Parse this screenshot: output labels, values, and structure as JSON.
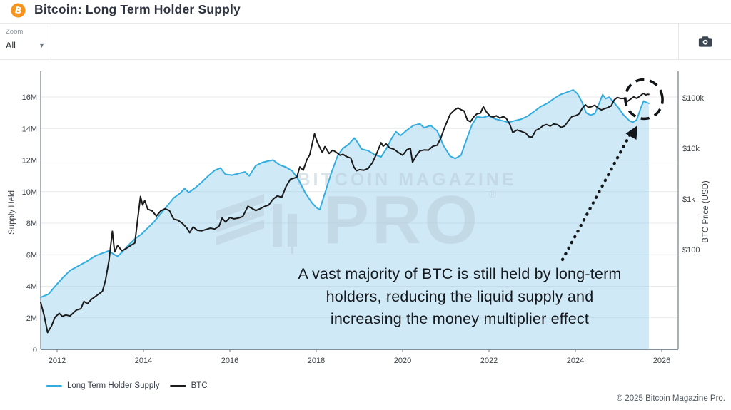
{
  "header": {
    "title": "Bitcoin: Long Term Holder Supply"
  },
  "toolbar": {
    "zoom_label": "Zoom",
    "zoom_value": "All"
  },
  "watermark": {
    "line1": "BITCOIN MAGAZINE",
    "line2": "PRO",
    "registered": "®"
  },
  "footer": {
    "copyright": "© 2025 Bitcoin Magazine Pro."
  },
  "colors": {
    "brand_orange": "#f7931a",
    "supply_line": "#33ade0",
    "supply_fill": "#89c7eb",
    "btc_line": "#1b1b1b",
    "grid": "#e8eaec",
    "axis": "#737c85",
    "watermark": "#b9cdd9"
  },
  "chart_data": {
    "type": "line",
    "title": "Bitcoin: Long Term Holder Supply",
    "x_range": [
      2011.62,
      2026.38
    ],
    "x_axis": {
      "tick_values": [
        2012,
        2014,
        2016,
        2018,
        2020,
        2022,
        2024,
        2026
      ],
      "tick_labels": [
        "2012",
        "2014",
        "2016",
        "2018",
        "2020",
        "2022",
        "2024",
        "2026"
      ]
    },
    "left_axis": {
      "title": "Supply Held",
      "ylim": [
        0,
        17.63
      ],
      "tick_values": [
        0,
        2,
        4,
        6,
        8,
        10,
        12,
        14,
        16
      ],
      "tick_labels": [
        "0",
        "2M",
        "4M",
        "6M",
        "8M",
        "10M",
        "12M",
        "14M",
        "16M"
      ]
    },
    "right_axis": {
      "title": "BTC Price (USD)",
      "scale": "log",
      "ylim": [
        1.07,
        332000
      ],
      "tick_values": [
        100,
        1000,
        10000,
        100000
      ],
      "tick_labels": [
        "$100",
        "$1k",
        "$10k",
        "$100k"
      ]
    },
    "grid": "horizontal-only",
    "legend_position": "bottom-left",
    "annotation": {
      "lines": [
        "A vast majority of BTC is still held by long-term",
        "holders, reducing the liquid supply and",
        "increasing the money multiplier effect"
      ],
      "arrow_to": [
        2025.55,
        15.8
      ],
      "circle_at": [
        2025.6,
        15.7
      ]
    },
    "series": [
      {
        "name": "Long Term Holder Supply",
        "axis": "left",
        "unit": "M BTC",
        "color": "#33ade0",
        "fill": true,
        "fill_color": "#89c7eb",
        "fill_opacity": 0.4,
        "points": [
          [
            2011.62,
            3.3
          ],
          [
            2011.8,
            3.5
          ],
          [
            2012.0,
            4.15
          ],
          [
            2012.15,
            4.6
          ],
          [
            2012.3,
            5.0
          ],
          [
            2012.5,
            5.3
          ],
          [
            2012.7,
            5.6
          ],
          [
            2012.9,
            5.95
          ],
          [
            2013.05,
            6.1
          ],
          [
            2013.2,
            6.25
          ],
          [
            2013.3,
            6.05
          ],
          [
            2013.4,
            5.9
          ],
          [
            2013.5,
            6.15
          ],
          [
            2013.65,
            6.6
          ],
          [
            2013.8,
            7.0
          ],
          [
            2013.95,
            7.3
          ],
          [
            2014.1,
            7.7
          ],
          [
            2014.25,
            8.1
          ],
          [
            2014.4,
            8.6
          ],
          [
            2014.55,
            9.1
          ],
          [
            2014.7,
            9.6
          ],
          [
            2014.85,
            9.9
          ],
          [
            2014.95,
            10.2
          ],
          [
            2015.05,
            9.95
          ],
          [
            2015.2,
            10.25
          ],
          [
            2015.35,
            10.6
          ],
          [
            2015.5,
            11.0
          ],
          [
            2015.65,
            11.35
          ],
          [
            2015.78,
            11.5
          ],
          [
            2015.9,
            11.1
          ],
          [
            2016.05,
            11.05
          ],
          [
            2016.2,
            11.15
          ],
          [
            2016.35,
            11.25
          ],
          [
            2016.45,
            11.0
          ],
          [
            2016.6,
            11.65
          ],
          [
            2016.75,
            11.85
          ],
          [
            2016.9,
            11.95
          ],
          [
            2017.0,
            12.0
          ],
          [
            2017.15,
            11.7
          ],
          [
            2017.3,
            11.55
          ],
          [
            2017.45,
            11.3
          ],
          [
            2017.6,
            10.7
          ],
          [
            2017.75,
            9.9
          ],
          [
            2017.9,
            9.3
          ],
          [
            2018.0,
            9.0
          ],
          [
            2018.08,
            8.85
          ],
          [
            2018.2,
            9.9
          ],
          [
            2018.35,
            11.2
          ],
          [
            2018.5,
            12.3
          ],
          [
            2018.62,
            12.75
          ],
          [
            2018.75,
            13.0
          ],
          [
            2018.88,
            13.4
          ],
          [
            2018.95,
            13.15
          ],
          [
            2019.05,
            12.7
          ],
          [
            2019.2,
            12.6
          ],
          [
            2019.35,
            12.35
          ],
          [
            2019.5,
            12.2
          ],
          [
            2019.62,
            12.7
          ],
          [
            2019.75,
            13.4
          ],
          [
            2019.85,
            13.8
          ],
          [
            2019.95,
            13.55
          ],
          [
            2020.1,
            13.9
          ],
          [
            2020.25,
            14.2
          ],
          [
            2020.4,
            14.3
          ],
          [
            2020.5,
            14.05
          ],
          [
            2020.65,
            14.2
          ],
          [
            2020.8,
            13.85
          ],
          [
            2020.95,
            12.9
          ],
          [
            2021.1,
            12.25
          ],
          [
            2021.22,
            12.1
          ],
          [
            2021.35,
            12.3
          ],
          [
            2021.48,
            13.3
          ],
          [
            2021.6,
            14.2
          ],
          [
            2021.72,
            14.75
          ],
          [
            2021.85,
            14.7
          ],
          [
            2022.0,
            14.8
          ],
          [
            2022.15,
            14.6
          ],
          [
            2022.3,
            14.5
          ],
          [
            2022.45,
            14.4
          ],
          [
            2022.6,
            14.5
          ],
          [
            2022.75,
            14.6
          ],
          [
            2022.9,
            14.8
          ],
          [
            2023.05,
            15.1
          ],
          [
            2023.2,
            15.4
          ],
          [
            2023.35,
            15.6
          ],
          [
            2023.5,
            15.9
          ],
          [
            2023.65,
            16.15
          ],
          [
            2023.8,
            16.3
          ],
          [
            2023.95,
            16.45
          ],
          [
            2024.05,
            16.2
          ],
          [
            2024.15,
            15.7
          ],
          [
            2024.25,
            15.0
          ],
          [
            2024.35,
            14.85
          ],
          [
            2024.45,
            14.95
          ],
          [
            2024.55,
            15.6
          ],
          [
            2024.63,
            16.15
          ],
          [
            2024.7,
            15.9
          ],
          [
            2024.78,
            16.0
          ],
          [
            2024.88,
            15.7
          ],
          [
            2025.0,
            15.3
          ],
          [
            2025.12,
            14.85
          ],
          [
            2025.25,
            14.5
          ],
          [
            2025.33,
            14.4
          ],
          [
            2025.42,
            14.55
          ],
          [
            2025.5,
            15.2
          ],
          [
            2025.58,
            15.75
          ],
          [
            2025.65,
            15.65
          ],
          [
            2025.7,
            15.6
          ]
        ]
      },
      {
        "name": "BTC",
        "axis": "right",
        "unit": "USD",
        "color": "#1b1b1b",
        "fill": false,
        "points": [
          [
            2011.62,
            9
          ],
          [
            2011.7,
            5
          ],
          [
            2011.78,
            2.3
          ],
          [
            2011.87,
            3.1
          ],
          [
            2011.95,
            4.6
          ],
          [
            2012.05,
            5.5
          ],
          [
            2012.12,
            4.8
          ],
          [
            2012.2,
            5.1
          ],
          [
            2012.3,
            4.9
          ],
          [
            2012.45,
            6.4
          ],
          [
            2012.55,
            6.8
          ],
          [
            2012.62,
            9.5
          ],
          [
            2012.7,
            8.5
          ],
          [
            2012.8,
            10.5
          ],
          [
            2012.95,
            13
          ],
          [
            2013.05,
            15
          ],
          [
            2013.12,
            25
          ],
          [
            2013.2,
            60
          ],
          [
            2013.28,
            230
          ],
          [
            2013.33,
            90
          ],
          [
            2013.4,
            120
          ],
          [
            2013.5,
            95
          ],
          [
            2013.6,
            105
          ],
          [
            2013.7,
            120
          ],
          [
            2013.8,
            135
          ],
          [
            2013.87,
            420
          ],
          [
            2013.93,
            1120
          ],
          [
            2013.98,
            760
          ],
          [
            2014.03,
            930
          ],
          [
            2014.1,
            630
          ],
          [
            2014.2,
            580
          ],
          [
            2014.3,
            460
          ],
          [
            2014.4,
            580
          ],
          [
            2014.5,
            640
          ],
          [
            2014.6,
            590
          ],
          [
            2014.7,
            400
          ],
          [
            2014.8,
            380
          ],
          [
            2014.9,
            330
          ],
          [
            2015.0,
            270
          ],
          [
            2015.07,
            215
          ],
          [
            2015.15,
            280
          ],
          [
            2015.25,
            240
          ],
          [
            2015.35,
            235
          ],
          [
            2015.45,
            250
          ],
          [
            2015.55,
            265
          ],
          [
            2015.65,
            255
          ],
          [
            2015.75,
            290
          ],
          [
            2015.82,
            420
          ],
          [
            2015.9,
            350
          ],
          [
            2016.0,
            430
          ],
          [
            2016.1,
            405
          ],
          [
            2016.2,
            420
          ],
          [
            2016.3,
            450
          ],
          [
            2016.42,
            720
          ],
          [
            2016.5,
            660
          ],
          [
            2016.6,
            590
          ],
          [
            2016.7,
            640
          ],
          [
            2016.8,
            710
          ],
          [
            2016.9,
            760
          ],
          [
            2017.0,
            990
          ],
          [
            2017.1,
            1150
          ],
          [
            2017.2,
            1080
          ],
          [
            2017.3,
            1750
          ],
          [
            2017.4,
            2450
          ],
          [
            2017.47,
            2550
          ],
          [
            2017.55,
            2700
          ],
          [
            2017.62,
            4300
          ],
          [
            2017.7,
            3700
          ],
          [
            2017.78,
            5900
          ],
          [
            2017.85,
            7500
          ],
          [
            2017.9,
            11500
          ],
          [
            2017.96,
            19300
          ],
          [
            2018.02,
            13500
          ],
          [
            2018.08,
            10500
          ],
          [
            2018.14,
            8300
          ],
          [
            2018.2,
            10800
          ],
          [
            2018.3,
            7900
          ],
          [
            2018.38,
            9200
          ],
          [
            2018.45,
            8500
          ],
          [
            2018.55,
            7300
          ],
          [
            2018.62,
            7600
          ],
          [
            2018.7,
            6900
          ],
          [
            2018.8,
            6400
          ],
          [
            2018.87,
            4300
          ],
          [
            2018.93,
            3600
          ],
          [
            2019.0,
            3800
          ],
          [
            2019.1,
            3700
          ],
          [
            2019.2,
            4000
          ],
          [
            2019.3,
            5200
          ],
          [
            2019.4,
            7900
          ],
          [
            2019.5,
            12900
          ],
          [
            2019.55,
            11000
          ],
          [
            2019.62,
            12200
          ],
          [
            2019.7,
            10200
          ],
          [
            2019.8,
            9600
          ],
          [
            2019.9,
            8300
          ],
          [
            2020.0,
            7300
          ],
          [
            2020.1,
            9400
          ],
          [
            2020.18,
            10000
          ],
          [
            2020.23,
            5300
          ],
          [
            2020.3,
            6800
          ],
          [
            2020.4,
            8900
          ],
          [
            2020.5,
            9300
          ],
          [
            2020.6,
            9200
          ],
          [
            2020.7,
            11000
          ],
          [
            2020.8,
            11500
          ],
          [
            2020.88,
            15500
          ],
          [
            2020.95,
            23000
          ],
          [
            2021.03,
            34000
          ],
          [
            2021.1,
            47000
          ],
          [
            2021.2,
            57000
          ],
          [
            2021.28,
            63000
          ],
          [
            2021.35,
            58000
          ],
          [
            2021.42,
            55000
          ],
          [
            2021.5,
            36000
          ],
          [
            2021.57,
            33500
          ],
          [
            2021.65,
            42000
          ],
          [
            2021.72,
            48000
          ],
          [
            2021.8,
            49500
          ],
          [
            2021.87,
            66500
          ],
          [
            2021.95,
            51000
          ],
          [
            2022.03,
            43000
          ],
          [
            2022.1,
            41500
          ],
          [
            2022.17,
            44000
          ],
          [
            2022.25,
            39500
          ],
          [
            2022.33,
            42500
          ],
          [
            2022.4,
            39000
          ],
          [
            2022.48,
            30000
          ],
          [
            2022.55,
            20500
          ],
          [
            2022.65,
            23000
          ],
          [
            2022.75,
            21500
          ],
          [
            2022.85,
            20000
          ],
          [
            2022.92,
            17000
          ],
          [
            2023.0,
            16700
          ],
          [
            2023.08,
            22500
          ],
          [
            2023.17,
            24500
          ],
          [
            2023.25,
            28000
          ],
          [
            2023.33,
            29500
          ],
          [
            2023.42,
            27500
          ],
          [
            2023.5,
            30200
          ],
          [
            2023.58,
            29500
          ],
          [
            2023.67,
            26000
          ],
          [
            2023.75,
            27500
          ],
          [
            2023.83,
            34000
          ],
          [
            2023.92,
            42500
          ],
          [
            2024.0,
            44000
          ],
          [
            2024.08,
            47500
          ],
          [
            2024.16,
            62000
          ],
          [
            2024.23,
            72500
          ],
          [
            2024.3,
            64500
          ],
          [
            2024.37,
            66500
          ],
          [
            2024.45,
            71000
          ],
          [
            2024.52,
            63000
          ],
          [
            2024.6,
            57500
          ],
          [
            2024.68,
            61000
          ],
          [
            2024.75,
            64000
          ],
          [
            2024.83,
            69000
          ],
          [
            2024.9,
            91000
          ],
          [
            2024.97,
            101000
          ],
          [
            2025.05,
            96500
          ],
          [
            2025.12,
            97000
          ],
          [
            2025.2,
            84000
          ],
          [
            2025.28,
            94000
          ],
          [
            2025.35,
            104000
          ],
          [
            2025.42,
            97000
          ],
          [
            2025.5,
            108000
          ],
          [
            2025.57,
            122000
          ],
          [
            2025.63,
            114000
          ],
          [
            2025.68,
            117000
          ],
          [
            2025.7,
            116000
          ]
        ]
      }
    ]
  }
}
